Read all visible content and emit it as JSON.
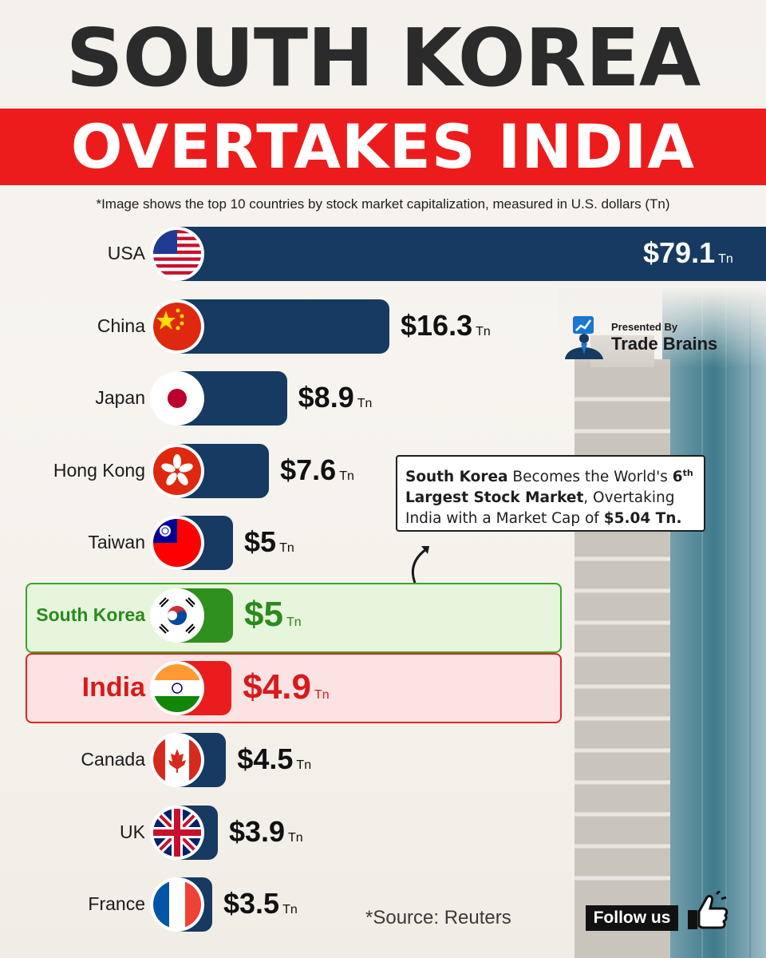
{
  "title": {
    "line1": "SOUTH KOREA",
    "line2": "OVERTAKES INDIA"
  },
  "subtitle": "*Image shows the top 10 countries by stock market capitalization, measured in U.S. dollars (Tn)",
  "colors": {
    "bar_default": "#163a61",
    "bar_south_korea": "#2f8f1f",
    "bar_india": "#e91d1d",
    "title_band": "#ed1c1c"
  },
  "chart_data": {
    "type": "bar",
    "orientation": "horizontal",
    "unit": "Tn",
    "categories": [
      "USA",
      "China",
      "Japan",
      "Hong Kong",
      "Taiwan",
      "South Korea",
      "India",
      "Canada",
      "UK",
      "France"
    ],
    "values": [
      79.1,
      16.3,
      8.9,
      7.6,
      5,
      5,
      4.9,
      4.5,
      3.9,
      3.5
    ],
    "value_labels": [
      "$79.1",
      "$16.3",
      "$8.9",
      "$7.6",
      "$5",
      "$5",
      "$4.9",
      "$4.5",
      "$3.9",
      "$3.5"
    ],
    "highlighted": {
      "South Korea": "green",
      "India": "red"
    },
    "flags": [
      "us-flag-icon",
      "china-flag-icon",
      "japan-flag-icon",
      "hong-kong-flag-icon",
      "taiwan-flag-icon",
      "south-korea-flag-icon",
      "india-flag-icon",
      "canada-flag-icon",
      "uk-flag-icon",
      "france-flag-icon"
    ]
  },
  "annotation": {
    "part1": "South Korea",
    "part2": " Becomes the World's ",
    "part3": "6",
    "part3_sup": "th",
    "part4": "Largest Stock Market",
    "part5": ", Overtaking India with a Market Cap of ",
    "part6": "$5.04 Tn."
  },
  "presenter": {
    "label": "Presented By",
    "name": "Trade Brains"
  },
  "source": "*Source: Reuters",
  "follow_label": "Follow us"
}
